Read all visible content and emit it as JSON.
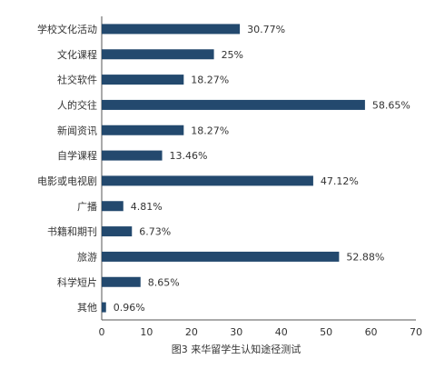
{
  "chart_data": {
    "type": "bar",
    "orientation": "horizontal",
    "categories": [
      "学校文化活动",
      "文化课程",
      "社交软件",
      "人的交往",
      "新闻资讯",
      "自学课程",
      "电影或电视剧",
      "广播",
      "书籍和期刊",
      "旅游",
      "科学短片",
      "其他"
    ],
    "values": [
      30.77,
      25,
      18.27,
      58.65,
      18.27,
      13.46,
      47.12,
      4.81,
      6.73,
      52.88,
      8.65,
      0.96
    ],
    "value_labels": [
      "30.77%",
      "25%",
      "18.27%",
      "58.65%",
      "18.27%",
      "13.46%",
      "47.12%",
      "4.81%",
      "6.73%",
      "52.88%",
      "8.65%",
      "0.96%"
    ],
    "xticks": [
      "0",
      "10",
      "20",
      "30",
      "40",
      "50",
      "60",
      "70"
    ],
    "xlim": [
      0,
      70
    ],
    "caption": "图3 来华留学生认知途径测试",
    "bar_color": "#23496e",
    "grid": false
  }
}
